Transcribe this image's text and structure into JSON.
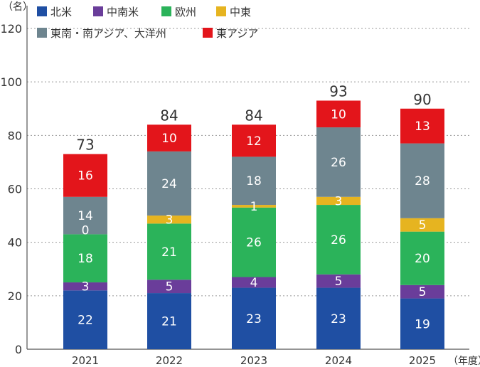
{
  "chart_data": {
    "type": "bar",
    "stacked": true,
    "y_unit": "（名）",
    "x_unit": "（年度）",
    "categories": [
      "2021",
      "2022",
      "2023",
      "2024",
      "2025"
    ],
    "ylim": [
      0,
      120
    ],
    "yticks": [
      0,
      20,
      40,
      60,
      80,
      100,
      120
    ],
    "grid": "dotted horizontal",
    "legend_position": "top",
    "series": [
      {
        "name": "北米",
        "color": "#1f4fa3",
        "values": [
          22,
          21,
          23,
          23,
          19
        ]
      },
      {
        "name": "中南米",
        "color": "#6a3d9a",
        "values": [
          3,
          5,
          4,
          5,
          5
        ]
      },
      {
        "name": "欧州",
        "color": "#2bb35a",
        "values": [
          18,
          21,
          26,
          26,
          20
        ]
      },
      {
        "name": "中東",
        "color": "#e6b420",
        "values": [
          0,
          3,
          1,
          3,
          5
        ]
      },
      {
        "name": "東南・南アジア、大洋州",
        "color": "#6e858f",
        "values": [
          14,
          24,
          18,
          26,
          28
        ]
      },
      {
        "name": "東アジア",
        "color": "#e3151b",
        "values": [
          16,
          10,
          12,
          10,
          13
        ]
      }
    ],
    "totals": [
      73,
      84,
      84,
      93,
      90
    ]
  }
}
